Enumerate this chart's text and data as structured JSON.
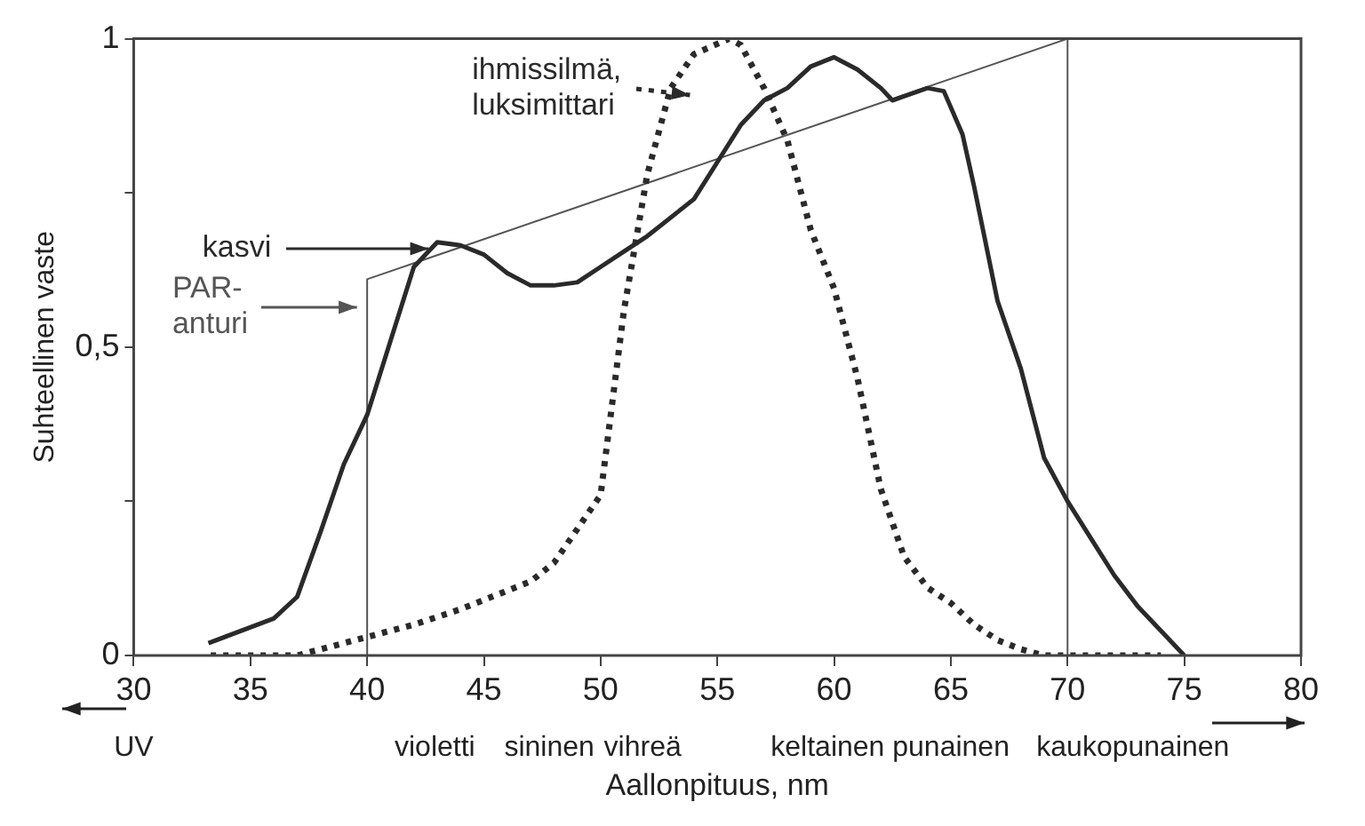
{
  "chart_data": {
    "type": "line",
    "xlabel": "Aallonpituus, nm",
    "ylabel": "Suhteellinen vaste",
    "xlim": [
      30,
      80
    ],
    "xticks": [
      30,
      35,
      40,
      45,
      50,
      55,
      60,
      65,
      70,
      75,
      80
    ],
    "ylim": [
      0,
      1
    ],
    "yticks": [
      0,
      {
        "value": 0.25,
        "label": null
      },
      {
        "value": 0.5,
        "label": "0,5"
      },
      {
        "value": 0.75,
        "label": null
      },
      1
    ],
    "legend": "top left",
    "series": [
      {
        "name": "kasvi",
        "color": "#2a2a2a",
        "line_style": "solid",
        "x": [
          33.2,
          36,
          37,
          38,
          39,
          40,
          41,
          42,
          43,
          44,
          45,
          46,
          47,
          48,
          49,
          50,
          51,
          52,
          54,
          55,
          56,
          57,
          58,
          59,
          60,
          61,
          62,
          62.5,
          64,
          64.7,
          65.5,
          66,
          67,
          68,
          69,
          70,
          71,
          72,
          73,
          74,
          75
        ],
        "values": [
          0.02,
          0.06,
          0.095,
          0.2,
          0.31,
          0.39,
          0.51,
          0.63,
          0.67,
          0.665,
          0.65,
          0.62,
          0.6,
          0.6,
          0.605,
          0.63,
          0.655,
          0.68,
          0.74,
          0.8,
          0.86,
          0.9,
          0.92,
          0.955,
          0.97,
          0.95,
          0.92,
          0.9,
          0.92,
          0.915,
          0.845,
          0.76,
          0.575,
          0.465,
          0.32,
          0.25,
          0.19,
          0.13,
          0.08,
          0.04,
          0
        ]
      },
      {
        "name": "ihmissilmä,\nluksimittari",
        "color": "#2a2a2a",
        "line_style": "dotted",
        "x": [
          33.3,
          37,
          38,
          40,
          42,
          44,
          46,
          47,
          48,
          49,
          50,
          51,
          52,
          53,
          54,
          55.5,
          56,
          57,
          58,
          59,
          60,
          61,
          62,
          63,
          64,
          65,
          66,
          67,
          68,
          69,
          74
        ],
        "values": [
          0,
          0,
          0.01,
          0.03,
          0.05,
          0.075,
          0.105,
          0.12,
          0.15,
          0.205,
          0.26,
          0.56,
          0.78,
          0.92,
          0.975,
          1,
          0.99,
          0.92,
          0.835,
          0.69,
          0.595,
          0.45,
          0.27,
          0.16,
          0.11,
          0.085,
          0.05,
          0.025,
          0.01,
          0,
          0
        ]
      },
      {
        "name": "PAR-\nanturi",
        "color": "#555555",
        "line_style": "solid",
        "x": [
          40,
          40,
          70,
          70
        ],
        "values": [
          0,
          0.61,
          1,
          0
        ]
      }
    ],
    "annotations": [
      "UV",
      "violetti",
      "sininen",
      "vihreä",
      "keltainen punainen",
      "kaukopunainen"
    ]
  }
}
